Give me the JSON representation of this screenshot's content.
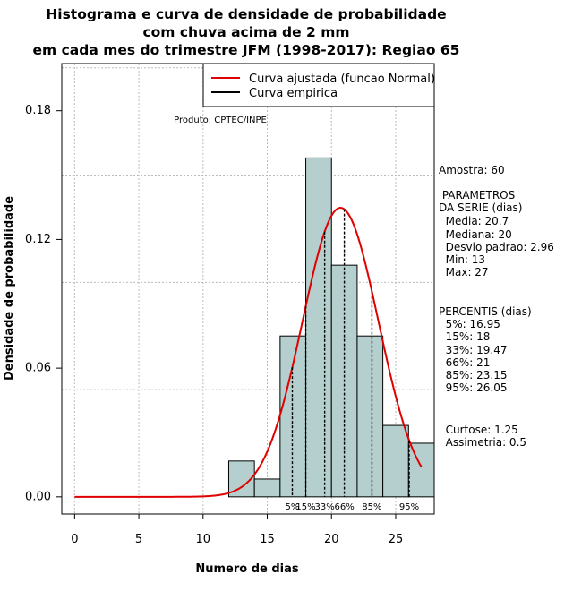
{
  "chart_data": {
    "type": "bar",
    "title_lines": [
      "Histograma e curva de densidade de probabilidade",
      "com chuva acima de 2 mm",
      "em cada mes do trimestre JFM (1998-2017): Regiao 65"
    ],
    "xlabel": "Numero de dias",
    "ylabel": "Densidade de probabilidade",
    "xlim": [
      -1,
      28
    ],
    "ylim": [
      -0.008,
      0.202
    ],
    "xticks": [
      "0",
      "5",
      "10",
      "15",
      "20",
      "25"
    ],
    "yticks": [
      "0.00",
      "0.06",
      "0.12",
      "0.18"
    ],
    "bins": [
      {
        "from": 12,
        "to": 14,
        "density": 0.0167
      },
      {
        "from": 14,
        "to": 16,
        "density": 0.0083
      },
      {
        "from": 16,
        "to": 18,
        "density": 0.075
      },
      {
        "from": 18,
        "to": 20,
        "density": 0.158
      },
      {
        "from": 20,
        "to": 22,
        "density": 0.108
      },
      {
        "from": 22,
        "to": 24,
        "density": 0.075
      },
      {
        "from": 24,
        "to": 26,
        "density": 0.0333
      },
      {
        "from": 26,
        "to": 28,
        "density": 0.025
      }
    ],
    "normal_fit": {
      "mean": 20.7,
      "sd": 2.96,
      "x_from": 0,
      "x_to": 27
    },
    "legend": [
      {
        "label": "Curva ajustada (funcao Normal)",
        "color": "#e00000"
      },
      {
        "label": "Curva empirica",
        "color": "#000000"
      }
    ],
    "percentile_markers": [
      {
        "label": "5%",
        "value": 16.95
      },
      {
        "label": "15%",
        "value": 18
      },
      {
        "label": "33%",
        "value": 19.47
      },
      {
        "label": "66%",
        "value": 21
      },
      {
        "label": "85%",
        "value": 23.15
      },
      {
        "label": "95%",
        "value": 26.05
      }
    ],
    "credit": "Produto: CPTEC/INPE",
    "colors": {
      "bar_fill": "#b4cfcd",
      "curve": "#e00000",
      "grid": "#bbbbbb"
    }
  },
  "side_panel": {
    "sample": "Amostra: 60",
    "params_title_1": " PARAMETROS",
    "params_title_2": "DA SERIE (dias)",
    "media": "  Media: 20.7",
    "mediana": "  Mediana: 20",
    "desvio": "  Desvio padrao: 2.96",
    "min": "  Min: 13",
    "max": "  Max: 27",
    "perc_title": "PERCENTIS (dias)",
    "p5": "  5%: 16.95",
    "p15": "  15%: 18",
    "p33": "  33%: 19.47",
    "p66": "  66%: 21",
    "p85": "  85%: 23.15",
    "p95": "  95%: 26.05",
    "curtose": "  Curtose: 1.25",
    "assimetria": "  Assimetria: 0.5"
  }
}
